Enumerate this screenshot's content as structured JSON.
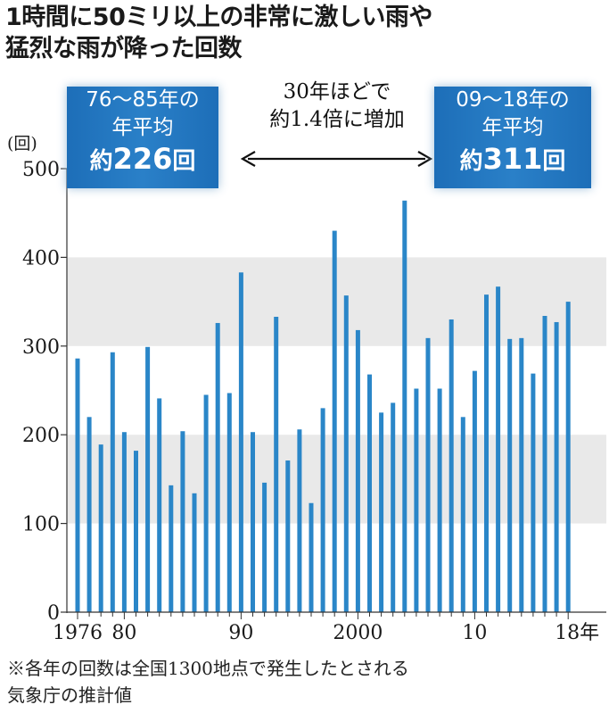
{
  "title": {
    "line1": "1時間に50ミリ以上の非常に激しい雨や",
    "line2": "猛烈な雨が降った回数"
  },
  "callouts": {
    "left": {
      "line1": "76～85年の",
      "line2": "年平均",
      "prefix": "約",
      "value": "226",
      "suffix": "回"
    },
    "middle": {
      "line1": "30年ほどで",
      "line2": "約1.4倍に増加"
    },
    "right": {
      "line1": "09～18年の",
      "line2": "年平均",
      "prefix": "約",
      "value": "311",
      "suffix": "回"
    }
  },
  "footnote": {
    "line1": "※各年の回数は全国1300地点で発生したとされる",
    "line2": "気象庁の推計値"
  },
  "colors": {
    "bar": "#2a86c8",
    "band": "#e9e9e9",
    "box": "#1d6eb8"
  },
  "chart_data": {
    "type": "bar",
    "ylabel": "(回)",
    "ylim": [
      0,
      500
    ],
    "yticks": [
      "0",
      "100",
      "200",
      "300",
      "400",
      "500"
    ],
    "xtick_labels": [
      {
        "year": 1976,
        "label": "1976"
      },
      {
        "year": 1980,
        "label": "80"
      },
      {
        "year": 1990,
        "label": "90"
      },
      {
        "year": 2000,
        "label": "2000"
      },
      {
        "year": 2010,
        "label": "10"
      },
      {
        "year": 2018,
        "label": "18年"
      }
    ],
    "grid_bands": [
      [
        100,
        200
      ],
      [
        300,
        400
      ]
    ],
    "categories": [
      1976,
      1977,
      1978,
      1979,
      1980,
      1981,
      1982,
      1983,
      1984,
      1985,
      1986,
      1987,
      1988,
      1989,
      1990,
      1991,
      1992,
      1993,
      1994,
      1995,
      1996,
      1997,
      1998,
      1999,
      2000,
      2001,
      2002,
      2003,
      2004,
      2005,
      2006,
      2007,
      2008,
      2009,
      2010,
      2011,
      2012,
      2013,
      2014,
      2015,
      2016,
      2017,
      2018
    ],
    "values": [
      286,
      220,
      189,
      293,
      203,
      182,
      299,
      241,
      143,
      204,
      134,
      245,
      326,
      247,
      383,
      203,
      146,
      333,
      171,
      206,
      123,
      230,
      430,
      357,
      318,
      268,
      225,
      236,
      464,
      252,
      309,
      252,
      330,
      220,
      272,
      358,
      367,
      308,
      309,
      269,
      334,
      327,
      350
    ]
  }
}
